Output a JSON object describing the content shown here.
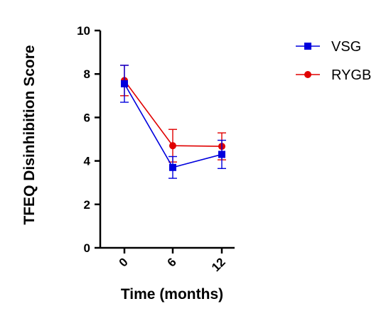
{
  "chart_data": {
    "type": "line",
    "title": "",
    "xlabel": "Time (months)",
    "ylabel": "TFEQ Disinhibition Score",
    "categories": [
      "0",
      "6",
      "12"
    ],
    "ylim": [
      0,
      10
    ],
    "yticks": [
      "0",
      "2",
      "4",
      "6",
      "8",
      "10"
    ],
    "grid": false,
    "legend_position": "top-right",
    "series": [
      {
        "name": "VSG",
        "color": "#0000dd",
        "marker": "square",
        "values": [
          7.55,
          3.7,
          4.3
        ],
        "error": [
          0.85,
          0.5,
          0.65
        ]
      },
      {
        "name": "RYGB",
        "color": "#e00000",
        "marker": "circle",
        "values": [
          7.7,
          4.7,
          4.67
        ],
        "error": [
          0.7,
          0.75,
          0.62
        ]
      }
    ]
  }
}
